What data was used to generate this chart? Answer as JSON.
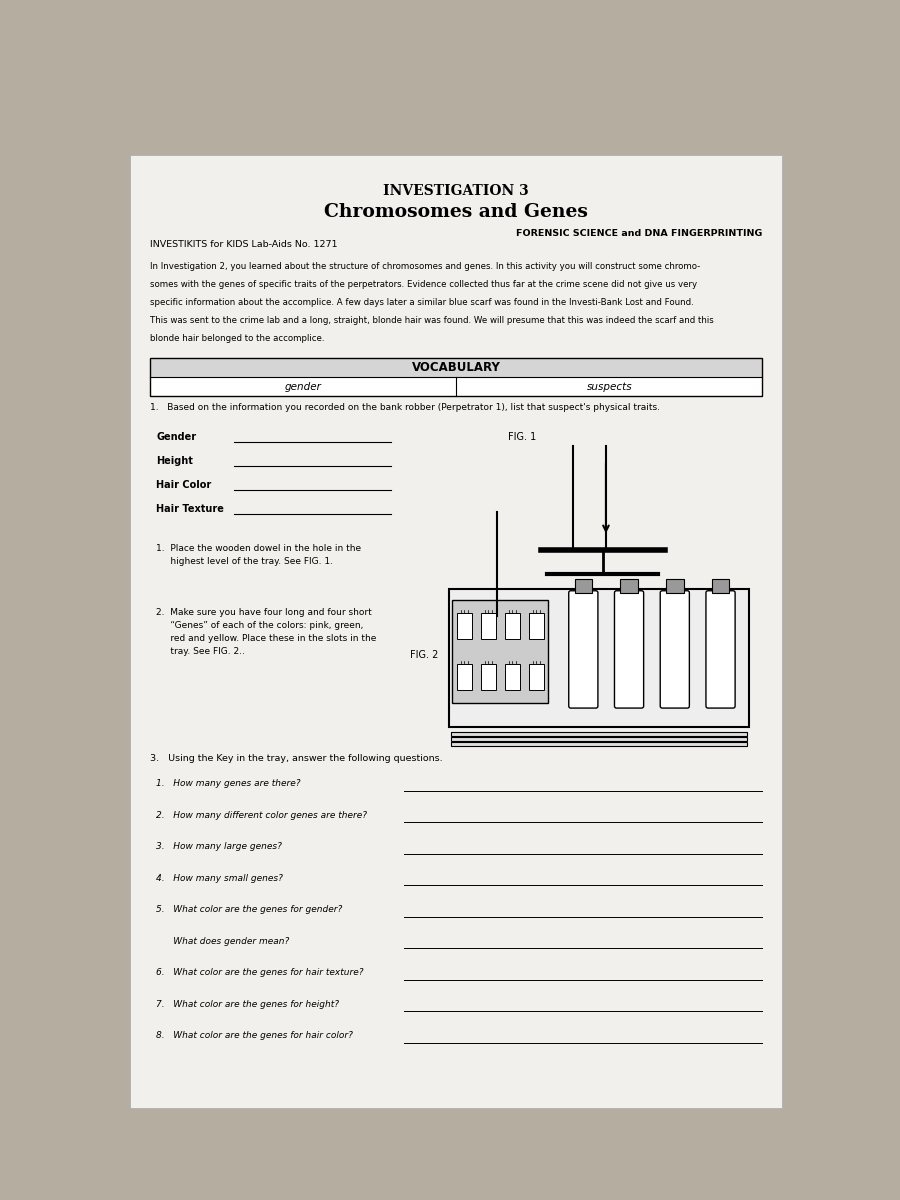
{
  "bg_color": "#b5ada0",
  "paper_color": "#f2f0ec",
  "title1": "INVESTIGATION 3",
  "title2": "Chromosomes and Genes",
  "subtitle_right": "FORENSIC SCIENCE and DNA FINGERPRINTING",
  "subtitle_left": "INVESTIKITS for KIDS Lab-Aids No. 1271",
  "intro_line1": "In Investigation 2, you learned about the structure of chromosomes and genes. In this activity you will construct some chromo-",
  "intro_line2": "somes with the genes of specific traits of the perpetrators. Evidence collected thus far at the crime scene did not give us very",
  "intro_line3": "specific information about the accomplice. A few days later a similar blue scarf was found in the Investi-Bank Lost and Found.",
  "intro_line4": "This was sent to the crime lab and a long, straight, blonde hair was found. We will presume that this was indeed the scarf and this",
  "intro_line5": "blonde hair belonged to the accomplice.",
  "vocab_title": "VOCABULARY",
  "vocab_left": "gender",
  "vocab_right": "suspects",
  "q1_header": "1.   Based on the information you recorded on the bank robber (Perpetrator 1), list that suspect's physical traits.",
  "trait_labels": [
    "Gender",
    "Height",
    "Hair Color",
    "Hair Texture"
  ],
  "step1": "1.  Place the wooden dowel in the hole in the\n     highest level of the tray. See FIG. 1.",
  "step2": "2.  Make sure you have four long and four short\n     “Genes” of each of the colors: pink, green,\n     red and yellow. Place these in the slots in the\n     tray. See FIG. 2..",
  "fig1_label": "FIG. 1",
  "fig2_label": "FIG. 2",
  "step3": "3.   Using the Key in the tray, answer the following questions.",
  "questions": [
    "1.   How many genes are there?",
    "2.   How many different color genes are there?",
    "3.   How many large genes?",
    "4.   How many small genes?",
    "5.   What color are the genes for gender?",
    "      What does gender mean?",
    "6.   What color are the genes for hair texture?",
    "7.   What color are the genes for height?",
    "8.   What color are the genes for hair color?"
  ]
}
